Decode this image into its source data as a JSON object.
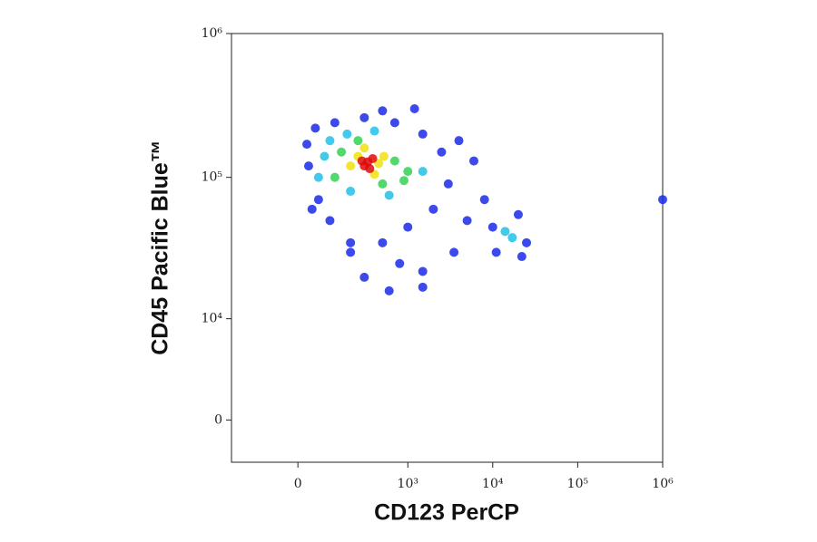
{
  "chart_data": {
    "type": "scatter",
    "x_label": "CD123 PerCP",
    "y_label": "CD45 Pacific Blue™",
    "xscale": "logicle",
    "yscale": "logicle",
    "xlim": [
      -300,
      1000000
    ],
    "ylim": [
      -3000,
      1000000
    ],
    "xticks": [
      0,
      {
        "value": 1000,
        "label": "10³"
      },
      {
        "value": 10000,
        "label": "10⁴"
      },
      {
        "value": 100000,
        "label": "10⁵"
      },
      {
        "value": 1000000,
        "label": "10⁶"
      }
    ],
    "yticks": [
      0,
      {
        "value": 10000,
        "label": "10⁴"
      },
      {
        "value": 100000,
        "label": "10⁵"
      },
      {
        "value": 1000000,
        "label": "10⁶"
      }
    ],
    "series": [
      {
        "color": "#1a2ae8",
        "x": [
          30,
          25,
          50,
          120,
          300,
          700,
          1500,
          2500,
          3000,
          2000,
          1000,
          500,
          200,
          100,
          60,
          800,
          300,
          1500,
          5000,
          8000,
          11000,
          20000,
          25000,
          10000,
          22000,
          4000,
          6000,
          1200,
          500,
          200,
          1500,
          600,
          40,
          3500,
          1000000
        ],
        "y": [
          120000,
          170000,
          220000,
          240000,
          260000,
          240000,
          200000,
          150000,
          90000,
          60000,
          45000,
          35000,
          30000,
          50000,
          70000,
          25000,
          20000,
          22000,
          50000,
          70000,
          30000,
          55000,
          35000,
          45000,
          28000,
          180000,
          130000,
          300000,
          290000,
          35000,
          17000,
          16000,
          60000,
          30000,
          70000
        ]
      },
      {
        "color": "#22bfe6",
        "x": [
          80,
          100,
          180,
          400,
          1500,
          60,
          200,
          600,
          14000,
          17000
        ],
        "y": [
          140000,
          180000,
          200000,
          210000,
          110000,
          100000,
          80000,
          75000,
          42000,
          38000
        ]
      },
      {
        "color": "#34d254",
        "x": [
          150,
          700,
          1000,
          250,
          120,
          500,
          900
        ],
        "y": [
          150000,
          130000,
          110000,
          180000,
          100000,
          90000,
          95000
        ]
      },
      {
        "color": "#f0e010",
        "x": [
          250,
          450,
          300,
          400,
          200,
          520
        ],
        "y": [
          140000,
          125000,
          160000,
          105000,
          120000,
          140000
        ]
      },
      {
        "color": "#e00a0a",
        "x": [
          330,
          300,
          380,
          350,
          280
        ],
        "y": [
          128000,
          120000,
          135000,
          115000,
          130000
        ]
      }
    ]
  }
}
